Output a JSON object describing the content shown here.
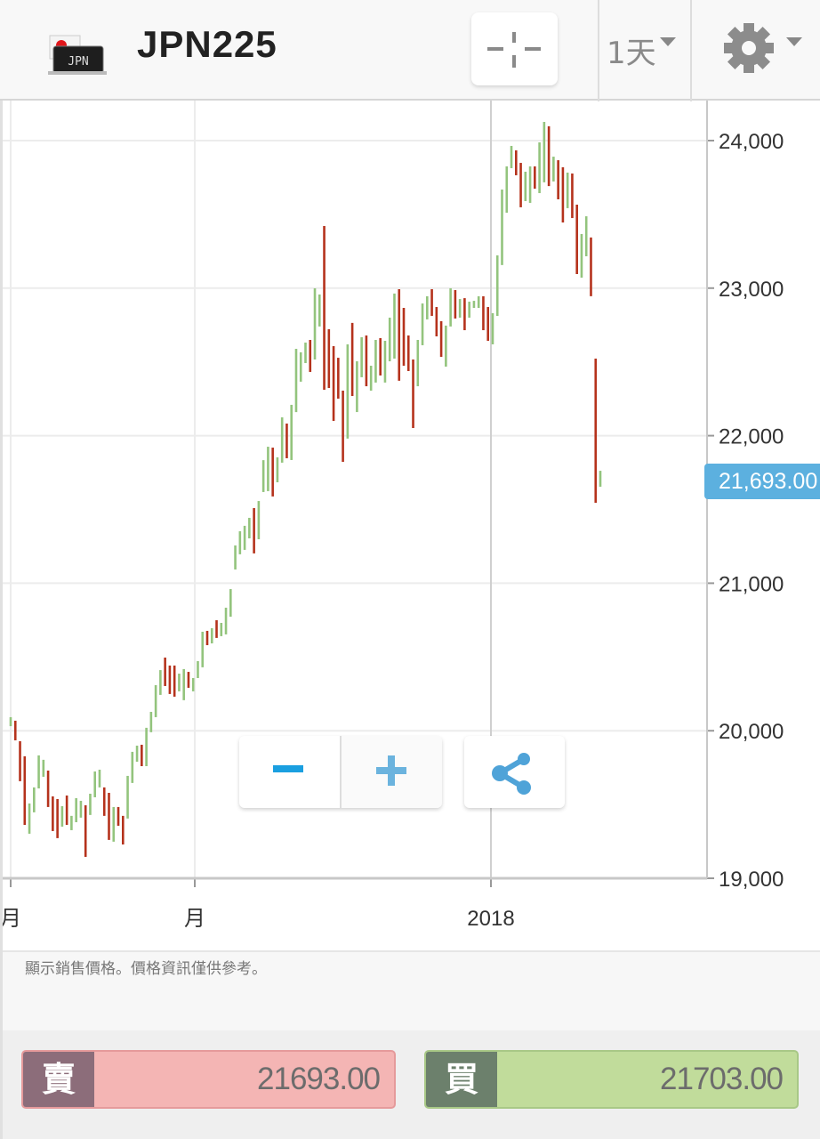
{
  "header": {
    "flag_label": "JPN",
    "symbol": "JPN225",
    "period": "1天",
    "icons": {
      "crosshair": "crosshair-icon",
      "settings": "gear-icon",
      "dropdown": "caret-down-icon"
    }
  },
  "chart_data": {
    "type": "ohlc",
    "ylim": [
      19000,
      24200
    ],
    "y_ticks": [
      "19,000",
      "20,000",
      "21,000",
      "22,000",
      "23,000",
      "24,000"
    ],
    "y_tick_values": [
      19000,
      20000,
      21000,
      22000,
      23000,
      24000
    ],
    "x_ticks": [
      "月",
      "月",
      "2018"
    ],
    "x_tick_bar_index": [
      0,
      39,
      104
    ],
    "grid": true,
    "last_price": "21,693.00",
    "last_price_value": 21693,
    "colors": {
      "up": "#93c47d",
      "down": "#b5321c",
      "price_tag": "#5cb0df"
    },
    "bars": [
      [
        20092,
        20031,
        1
      ],
      [
        20068,
        19935,
        0
      ],
      [
        19929,
        19658,
        0
      ],
      [
        19827,
        19362,
        0
      ],
      [
        19507,
        19302,
        1
      ],
      [
        19616,
        19447,
        1
      ],
      [
        19833,
        19609,
        1
      ],
      [
        19803,
        19688,
        1
      ],
      [
        19730,
        19483,
        0
      ],
      [
        19555,
        19320,
        0
      ],
      [
        19537,
        19272,
        0
      ],
      [
        19489,
        19350,
        1
      ],
      [
        19561,
        19362,
        0
      ],
      [
        19423,
        19326,
        1
      ],
      [
        19543,
        19380,
        1
      ],
      [
        19525,
        19411,
        1
      ],
      [
        19495,
        19145,
        0
      ],
      [
        19573,
        19429,
        1
      ],
      [
        19724,
        19549,
        1
      ],
      [
        19736,
        19616,
        1
      ],
      [
        19616,
        19423,
        0
      ],
      [
        19579,
        19260,
        0
      ],
      [
        19483,
        19248,
        1
      ],
      [
        19483,
        19356,
        0
      ],
      [
        19423,
        19229,
        0
      ],
      [
        19694,
        19405,
        1
      ],
      [
        19857,
        19646,
        1
      ],
      [
        19899,
        19790,
        1
      ],
      [
        19905,
        19760,
        0
      ],
      [
        20020,
        19760,
        1
      ],
      [
        20128,
        19990,
        1
      ],
      [
        20309,
        20092,
        1
      ],
      [
        20411,
        20243,
        1
      ],
      [
        20496,
        20303,
        0
      ],
      [
        20442,
        20249,
        0
      ],
      [
        20442,
        20231,
        0
      ],
      [
        20387,
        20267,
        1
      ],
      [
        20418,
        20207,
        1
      ],
      [
        20399,
        20291,
        0
      ],
      [
        20357,
        20267,
        1
      ],
      [
        20472,
        20357,
        1
      ],
      [
        20671,
        20430,
        1
      ],
      [
        20677,
        20580,
        0
      ],
      [
        20695,
        20592,
        1
      ],
      [
        20749,
        20629,
        0
      ],
      [
        20731,
        20641,
        1
      ],
      [
        20834,
        20653,
        1
      ],
      [
        20960,
        20773,
        1
      ],
      [
        21256,
        21093,
        1
      ],
      [
        21352,
        21196,
        1
      ],
      [
        21389,
        21226,
        1
      ],
      [
        21443,
        21304,
        1
      ],
      [
        21509,
        21202,
        0
      ],
      [
        21557,
        21298,
        1
      ],
      [
        21834,
        21618,
        1
      ],
      [
        21925,
        21624,
        1
      ],
      [
        21919,
        21588,
        0
      ],
      [
        21853,
        21684,
        1
      ],
      [
        22124,
        21817,
        1
      ],
      [
        22082,
        21847,
        0
      ],
      [
        22209,
        21835,
        1
      ],
      [
        22589,
        22160,
        1
      ],
      [
        22565,
        22366,
        1
      ],
      [
        22631,
        22492,
        1
      ],
      [
        22649,
        22432,
        0
      ],
      [
        22999,
        22516,
        1
      ],
      [
        22957,
        22740,
        1
      ],
      [
        23421,
        22311,
        0
      ],
      [
        22721,
        22323,
        0
      ],
      [
        22607,
        22100,
        0
      ],
      [
        22528,
        22251,
        0
      ],
      [
        22305,
        21823,
        0
      ],
      [
        22619,
        21980,
        1
      ],
      [
        22764,
        22269,
        0
      ],
      [
        22504,
        22160,
        1
      ],
      [
        22667,
        22396,
        1
      ],
      [
        22679,
        22335,
        0
      ],
      [
        22474,
        22305,
        1
      ],
      [
        22649,
        22360,
        1
      ],
      [
        22661,
        22408,
        0
      ],
      [
        22643,
        22360,
        1
      ],
      [
        22800,
        22504,
        1
      ],
      [
        22963,
        22522,
        1
      ],
      [
        22993,
        22372,
        0
      ],
      [
        22866,
        22474,
        0
      ],
      [
        22679,
        22438,
        0
      ],
      [
        22516,
        22052,
        0
      ],
      [
        22649,
        22335,
        1
      ],
      [
        22896,
        22613,
        1
      ],
      [
        22945,
        22788,
        1
      ],
      [
        22993,
        22812,
        0
      ],
      [
        22872,
        22673,
        0
      ],
      [
        22776,
        22534,
        0
      ],
      [
        22746,
        22468,
        1
      ],
      [
        22999,
        22740,
        1
      ],
      [
        22987,
        22794,
        0
      ],
      [
        22926,
        22800,
        1
      ],
      [
        22932,
        22715,
        0
      ],
      [
        22908,
        22800,
        1
      ],
      [
        22914,
        22866,
        1
      ],
      [
        22945,
        22866,
        1
      ],
      [
        22945,
        22715,
        0
      ],
      [
        22872,
        22643,
        0
      ],
      [
        22830,
        22619,
        1
      ],
      [
        23222,
        22812,
        1
      ],
      [
        23668,
        23156,
        1
      ],
      [
        23825,
        23511,
        1
      ],
      [
        23964,
        23813,
        1
      ],
      [
        23934,
        23765,
        0
      ],
      [
        23849,
        23548,
        0
      ],
      [
        23789,
        23590,
        1
      ],
      [
        23825,
        23578,
        1
      ],
      [
        23825,
        23674,
        0
      ],
      [
        23988,
        23644,
        1
      ],
      [
        24127,
        23717,
        1
      ],
      [
        24097,
        23692,
        0
      ],
      [
        23891,
        23723,
        1
      ],
      [
        23867,
        23602,
        0
      ],
      [
        23819,
        23445,
        0
      ],
      [
        23783,
        23542,
        1
      ],
      [
        23777,
        23475,
        0
      ],
      [
        23566,
        23095,
        0
      ],
      [
        23367,
        23071,
        1
      ],
      [
        23487,
        23216,
        1
      ],
      [
        23343,
        22945,
        0
      ],
      [
        22522,
        21545,
        0
      ],
      [
        21762,
        21654,
        1
      ]
    ]
  },
  "controls": {
    "zoom_out_icon": "minus-icon",
    "zoom_in_icon": "plus-icon",
    "share_icon": "share-icon"
  },
  "disclaimer": "顯示銷售價格。價格資訊僅供參考。",
  "trade": {
    "sell_label": "賣",
    "sell_price": "21693.00",
    "buy_label": "買",
    "buy_price": "21703.00"
  }
}
